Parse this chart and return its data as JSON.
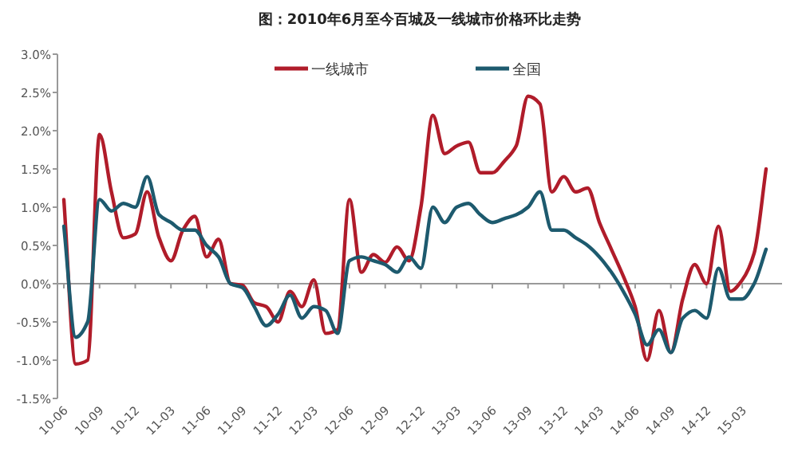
{
  "chart_data": {
    "type": "line",
    "title": "图：2010年6月至今百城及一线城市价格环比走势",
    "categories": [
      "10-06",
      null,
      null,
      "10-09",
      null,
      null,
      "10-12",
      null,
      null,
      "11-03",
      null,
      null,
      "11-06",
      null,
      null,
      "11-09",
      null,
      null,
      "11-12",
      null,
      null,
      "12-03",
      null,
      null,
      "12-06",
      null,
      null,
      "12-09",
      null,
      null,
      "12-12",
      null,
      null,
      "13-03",
      null,
      null,
      "13-06",
      null,
      null,
      "13-09",
      null,
      null,
      "13-12",
      null,
      null,
      "14-03",
      null,
      null,
      "14-06",
      null,
      null,
      "14-09",
      null,
      null,
      "14-12",
      null,
      null,
      "15-03",
      null,
      null
    ],
    "series": [
      {
        "name": "一线城市",
        "color": "#b01c2a",
        "values": [
          1.1,
          -1.05,
          -1.0,
          1.95,
          1.2,
          0.6,
          0.65,
          1.2,
          0.6,
          0.3,
          0.7,
          0.88,
          0.35,
          0.58,
          0.0,
          -0.02,
          -0.25,
          -0.3,
          -0.5,
          -0.1,
          -0.3,
          0.05,
          -0.65,
          -0.6,
          1.1,
          0.15,
          0.38,
          0.28,
          0.48,
          0.3,
          1.0,
          2.2,
          1.7,
          1.8,
          1.85,
          1.45,
          1.45,
          1.6,
          1.8,
          2.45,
          2.35,
          1.2,
          1.4,
          1.2,
          1.25,
          0.8,
          0.45,
          0.1,
          -0.3,
          -1.0,
          -0.35,
          -0.9,
          -0.2,
          0.25,
          0.0,
          0.75,
          -0.1,
          0.05,
          0.4,
          1.5
        ]
      },
      {
        "name": "全国",
        "color": "#1d5a6e",
        "values": [
          0.75,
          -0.7,
          -0.5,
          1.1,
          0.95,
          1.05,
          1.0,
          1.4,
          0.9,
          0.8,
          0.7,
          0.7,
          0.5,
          0.35,
          0.0,
          -0.05,
          -0.3,
          -0.55,
          -0.4,
          -0.15,
          -0.45,
          -0.3,
          -0.35,
          -0.65,
          0.3,
          0.35,
          0.3,
          0.25,
          0.15,
          0.35,
          0.2,
          1.0,
          0.8,
          1.0,
          1.05,
          0.9,
          0.8,
          0.85,
          0.9,
          1.0,
          1.2,
          0.7,
          0.7,
          0.6,
          0.5,
          0.35,
          0.15,
          -0.1,
          -0.4,
          -0.8,
          -0.6,
          -0.9,
          -0.45,
          -0.35,
          -0.45,
          0.2,
          -0.2,
          -0.2,
          0.0,
          0.45
        ]
      }
    ],
    "ylim": [
      -1.5,
      3.0
    ],
    "yticks": [
      {
        "value": -1.5,
        "label": "-1.5%"
      },
      {
        "value": -1.0,
        "label": "-1.0%"
      },
      {
        "value": -0.5,
        "label": "-0.5%"
      },
      {
        "value": 0.0,
        "label": "0.0%"
      },
      {
        "value": 0.5,
        "label": "0.5%"
      },
      {
        "value": 1.0,
        "label": "1.0%"
      },
      {
        "value": 1.5,
        "label": "1.5%"
      },
      {
        "value": 2.0,
        "label": "2.0%"
      },
      {
        "value": 2.5,
        "label": "2.5%"
      },
      {
        "value": 3.0,
        "label": "3.0%"
      }
    ],
    "legend": "top"
  }
}
